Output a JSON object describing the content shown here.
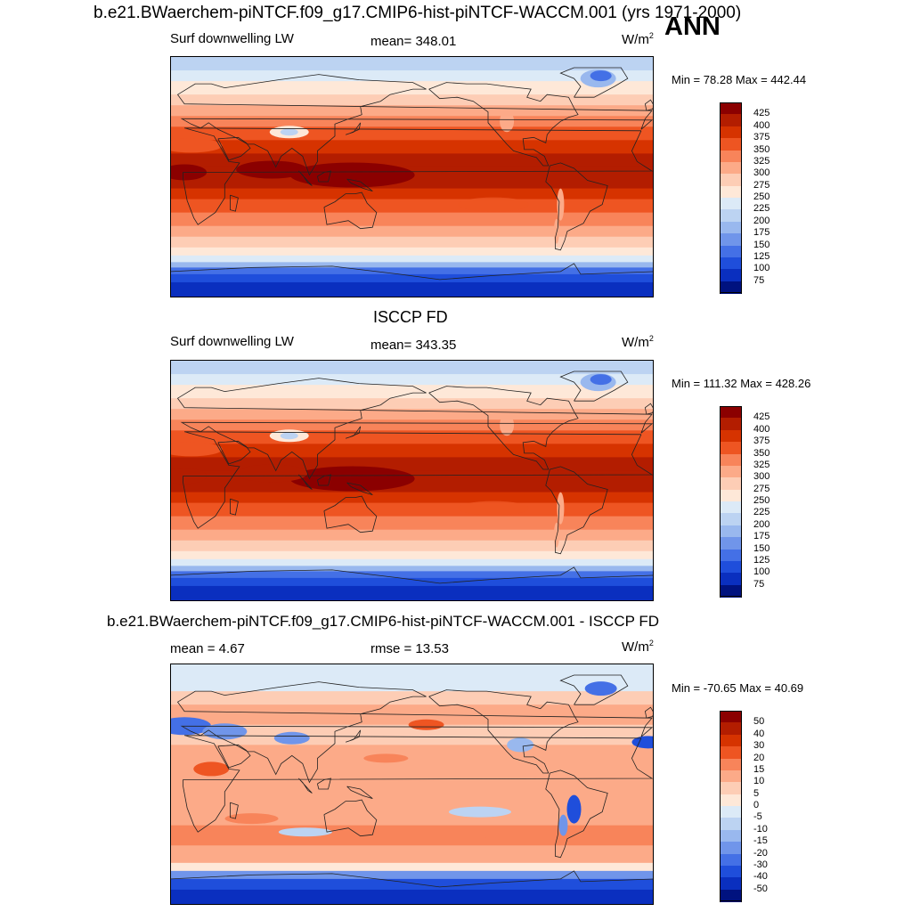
{
  "figure": {
    "title": "b.e21.BWaerchem-piNTCF.f09_g17.CMIP6-hist-piNTCF-WACCM.001 (yrs 1971-2000)",
    "season": "ANN"
  },
  "panels": [
    {
      "heading": "",
      "left_label": "Surf downwelling LW",
      "center_label": "mean= 348.01",
      "units": "W/m",
      "units_exp": "2",
      "minmax": "Min =  78.28 Max = 442.44",
      "colorbar": {
        "levels": [
          "425",
          "400",
          "375",
          "350",
          "325",
          "300",
          "275",
          "250",
          "225",
          "200",
          "175",
          "150",
          "125",
          "100",
          "75"
        ],
        "colors": [
          "#8b0000",
          "#b31d00",
          "#d63300",
          "#ee5522",
          "#f8845a",
          "#fcaa88",
          "#fdcdb5",
          "#fee8d8",
          "#dceaf7",
          "#bcd3f2",
          "#99b8ee",
          "#7095ea",
          "#4470e6",
          "#1f4edb",
          "#0a2fbf",
          "#00127f"
        ]
      },
      "map": {
        "type": "filled_contour",
        "field": "surface downwelling longwave",
        "min": 78.28,
        "max": 442.44
      }
    },
    {
      "heading": "ISCCP FD",
      "left_label": "Surf downwelling LW",
      "center_label": "mean= 343.35",
      "units": "W/m",
      "units_exp": "2",
      "minmax": "Min = 111.32 Max = 428.26",
      "colorbar": {
        "levels": [
          "425",
          "400",
          "375",
          "350",
          "325",
          "300",
          "275",
          "250",
          "225",
          "200",
          "175",
          "150",
          "125",
          "100",
          "75"
        ],
        "colors": [
          "#8b0000",
          "#b31d00",
          "#d63300",
          "#ee5522",
          "#f8845a",
          "#fcaa88",
          "#fdcdb5",
          "#fee8d8",
          "#dceaf7",
          "#bcd3f2",
          "#99b8ee",
          "#7095ea",
          "#4470e6",
          "#1f4edb",
          "#0a2fbf",
          "#00127f"
        ]
      },
      "map": {
        "type": "filled_contour",
        "field": "surface downwelling longwave",
        "min": 111.32,
        "max": 428.26
      }
    },
    {
      "heading": "b.e21.BWaerchem-piNTCF.f09_g17.CMIP6-hist-piNTCF-WACCM.001 - ISCCP FD",
      "left_label": "mean =   4.67",
      "center_label": "rmse =  13.53",
      "units": "W/m",
      "units_exp": "2",
      "minmax": "Min = -70.65 Max =  40.69",
      "colorbar": {
        "levels": [
          "50",
          "40",
          "30",
          "20",
          "15",
          "10",
          "5",
          "0",
          "-5",
          "-10",
          "-15",
          "-20",
          "-30",
          "-40",
          "-50"
        ],
        "colors": [
          "#8b0000",
          "#b31d00",
          "#d63300",
          "#ee5522",
          "#f8845a",
          "#fcaa88",
          "#fdcdb5",
          "#fee8d8",
          "#dceaf7",
          "#bcd3f2",
          "#99b8ee",
          "#7095ea",
          "#4470e6",
          "#1f4edb",
          "#0a2fbf",
          "#00127f"
        ]
      },
      "map": {
        "type": "filled_contour",
        "field": "difference (model - obs)",
        "min": -70.65,
        "max": 40.69
      }
    }
  ]
}
